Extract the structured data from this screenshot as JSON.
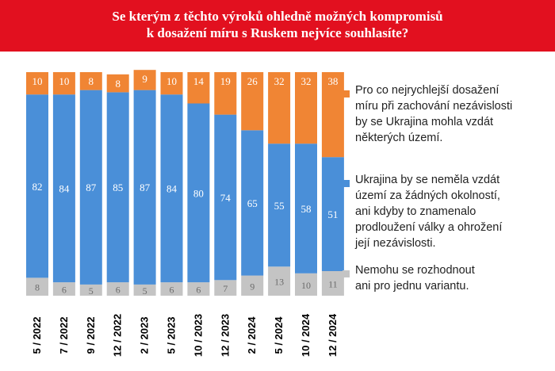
{
  "header": {
    "line1": "Se kterým z těchto výroků ohledně možných kompromisů",
    "line2": "k dosažení míru s Ruskem nejvíce souhlasíte?"
  },
  "legend": [
    {
      "color": "#f08534",
      "lines": [
        "Pro co nejrychlejší dosažení",
        "míru při zachování nezávislosti",
        "by se Ukrajina mohla vzdát",
        "některých území."
      ]
    },
    {
      "color": "#4a8fd8",
      "lines": [
        "Ukrajina by se neměla vzdát",
        "území za žádných okolností,",
        "ani kdyby to znamenalo",
        "prodloužení války a ohrožení",
        "její nezávislosti."
      ]
    },
    {
      "color": "#c4c4c4",
      "lines": [
        "Nemohu se rozhodnout",
        "ani pro jednu variantu."
      ]
    }
  ],
  "chart_data": {
    "type": "bar",
    "stacked": true,
    "categories": [
      "5 / 2022",
      "7 / 2022",
      "9 / 2022",
      "12 / 2022",
      "2 / 2023",
      "5 / 2023",
      "10 / 2023",
      "12 / 2023",
      "2 / 2024",
      "5 / 2024",
      "10 / 2024",
      "12 / 2024"
    ],
    "series": [
      {
        "name": "Nemohu se rozhodnout ani pro jednu variantu.",
        "color": "#c4c4c4",
        "label_color": "#6b6b6b",
        "values": [
          8,
          6,
          5,
          6,
          5,
          6,
          6,
          7,
          9,
          13,
          10,
          11
        ]
      },
      {
        "name": "Ukrajina by se neměla vzdát území za žádných okolností, ani kdyby to znamenalo prodloužení války a ohrožení její nezávislosti.",
        "color": "#4a8fd8",
        "label_color": "#ffffff",
        "values": [
          82,
          84,
          87,
          85,
          87,
          84,
          80,
          74,
          65,
          55,
          58,
          51
        ]
      },
      {
        "name": "Pro co nejrychlejší dosažení míru při zachování nezávislosti by se Ukrajina mohla vzdát některých území.",
        "color": "#f08534",
        "label_color": "#ffffff",
        "values": [
          10,
          10,
          8,
          8,
          9,
          10,
          14,
          19,
          26,
          32,
          32,
          38
        ]
      }
    ],
    "ylim": [
      0,
      100
    ]
  }
}
